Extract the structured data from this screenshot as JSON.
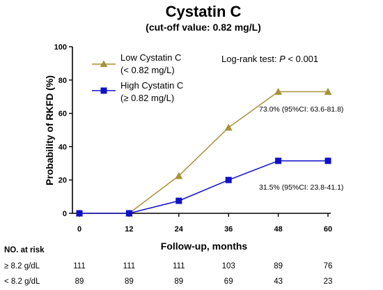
{
  "chart_data": {
    "type": "line",
    "title": "Cystatin C",
    "subtitle": "(cut-off value: 0.82 mg/L)",
    "xlabel": "Follow-up, months",
    "ylabel": "Probability of RKFD (%)",
    "x": [
      0,
      12,
      24,
      36,
      48,
      60
    ],
    "xlim": [
      0,
      60
    ],
    "ylim": [
      0,
      100
    ],
    "xticks": [
      "0",
      "12",
      "24",
      "36",
      "48",
      "60"
    ],
    "yticks": [
      "0",
      "20",
      "40",
      "60",
      "80",
      "100"
    ],
    "grid": false,
    "legend_position": "top-left",
    "series": [
      {
        "name": "Low Cystatin C",
        "name_line2": "(< 0.82 mg/L)",
        "values": [
          0,
          0,
          22.5,
          51.5,
          73,
          73
        ],
        "color": "#A8913C",
        "marker": "triangle"
      },
      {
        "name": "High Cystatin C",
        "name_line2": "(≥ 0.82 mg/L)",
        "values": [
          0,
          0,
          7.5,
          20,
          31.5,
          31.5
        ],
        "color": "#1010C8",
        "marker": "square"
      }
    ],
    "annotations": {
      "logrank_prefix": "Log-rank test: ",
      "logrank_p": "P",
      "logrank_suffix": " < 0.001",
      "low_end": "73.0% (95%CI: 63.6-81.8)",
      "high_end": "31.5% (95%CI: 23.8-41.1)"
    },
    "risk_table": {
      "title": "NO. at risk",
      "rows": [
        {
          "label": "≥ 8.2 g/dL",
          "values": [
            "111",
            "111",
            "111",
            "103",
            "89",
            "76"
          ]
        },
        {
          "label": "< 8.2 g/dL",
          "values": [
            "89",
            "89",
            "89",
            "69",
            "43",
            "23"
          ]
        }
      ]
    }
  }
}
